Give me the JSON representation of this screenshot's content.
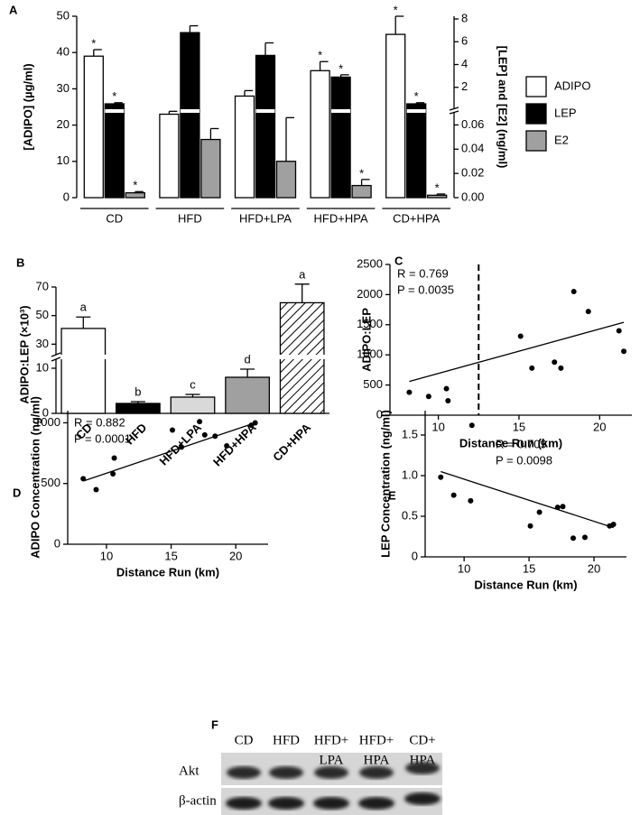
{
  "chart_data": [
    {
      "type": "grouped_bar_broken",
      "panel": "A",
      "categories": [
        "CD",
        "HFD",
        "HFD+LPA",
        "HFD+HPA",
        "CD+HPA"
      ],
      "ylabel": "[ADIPO] (µg/ml)",
      "y2label": "[LEP] and [E2] (ng/ml)",
      "ylim": [
        0,
        50
      ],
      "yticks": [
        0,
        10,
        20,
        30,
        40,
        50
      ],
      "y2lim": [
        0,
        8
      ],
      "y2ticks": [
        2,
        4,
        6,
        8
      ],
      "y3lim": [
        0,
        0.07
      ],
      "y3ticks": [
        {
          "value": 0,
          "label": "0.00"
        },
        0.02,
        0.04,
        0.06
      ],
      "series": [
        {
          "name": "ADIPO",
          "color": "#ffffff",
          "axis": "y",
          "values": [
            39,
            23,
            28,
            35,
            45
          ],
          "errors": [
            1.8,
            0.8,
            1.5,
            2.5,
            5
          ],
          "annotations": [
            "*",
            null,
            null,
            "*",
            "*"
          ]
        },
        {
          "name": "LEP",
          "color": "#000000",
          "axis": "y2",
          "values": [
            0.55,
            6.8,
            4.8,
            2.9,
            0.55
          ],
          "errors": [
            0.1,
            0.6,
            1.1,
            0.2,
            0.1
          ],
          "annotations": [
            "*",
            null,
            null,
            "*",
            "*"
          ]
        },
        {
          "name": "E2",
          "color": "#a0a0a0",
          "axis": "y3",
          "values": [
            0.004,
            0.048,
            0.03,
            0.01,
            0.002
          ],
          "errors": [
            0.001,
            0.009,
            0.036,
            0.005,
            0.001
          ],
          "annotations": [
            "*",
            null,
            null,
            "*",
            "*"
          ]
        }
      ],
      "legend": "right"
    },
    {
      "type": "bar_broken",
      "panel": "B",
      "ylabel": "ADIPO:LEP (×10³)",
      "categories": [
        "CD",
        "HFD",
        "HFD+LPA",
        "HFD+HPA",
        "CD+HPA"
      ],
      "values": [
        41,
        2.2,
        3.6,
        8,
        59
      ],
      "errors": [
        8,
        0.4,
        0.6,
        1.8,
        13
      ],
      "annotations": [
        "a",
        "b",
        "c",
        "d",
        "a"
      ],
      "colors": [
        "#ffffff",
        "#000000",
        "#d9d9d9",
        "#a0a0a0",
        "#ffffff"
      ],
      "hatch": [
        false,
        false,
        false,
        false,
        true
      ],
      "ylim": [
        0,
        70
      ],
      "yticks": [
        0,
        10,
        30,
        50,
        70
      ],
      "y_break": [
        12,
        22
      ]
    },
    {
      "type": "scatter",
      "panel": "C",
      "xlabel": "Distance Run (km)",
      "ylabel": "ADIPO:LEP",
      "x": [
        8.2,
        9.4,
        10.5,
        10.6,
        15.1,
        15.8,
        17.2,
        17.6,
        18.4,
        19.3,
        21.2,
        21.5
      ],
      "y": [
        380,
        310,
        440,
        240,
        1310,
        780,
        880,
        780,
        2050,
        1720,
        1400,
        1060
      ],
      "fit": {
        "x": [
          8.2,
          21.5
        ],
        "y": [
          560,
          1540
        ]
      },
      "vline": 12.5,
      "annotations": [
        "R = 0.769",
        "P = 0.0035"
      ],
      "color": "#000000",
      "xlim": [
        7,
        22
      ],
      "xticks": [
        10,
        15,
        20
      ],
      "ylim": [
        0,
        2500
      ],
      "yticks": [
        0,
        500,
        1000,
        1500,
        2000,
        2500
      ]
    },
    {
      "type": "scatter",
      "panel": "D",
      "xlabel": "Distance Run (km)",
      "ylabel": "ADIPO Concentration (ng/ml)",
      "x": [
        8.2,
        9.2,
        10.5,
        10.6,
        15.1,
        15.8,
        17.2,
        17.6,
        18.4,
        19.3,
        21.2,
        21.5
      ],
      "y": [
        540,
        450,
        580,
        710,
        940,
        800,
        1010,
        900,
        890,
        810,
        980,
        1000
      ],
      "fit": {
        "x": [
          8.2,
          21.5
        ],
        "y": [
          520,
          1000
        ]
      },
      "annotations": [
        "R = 0.882",
        "P = 0.0001"
      ],
      "color": "#000000",
      "xlim": [
        7,
        22.5
      ],
      "xticks": [
        10,
        15,
        20
      ],
      "ylim": [
        0,
        1100
      ],
      "yticks": [
        0,
        500,
        1000
      ]
    },
    {
      "type": "scatter",
      "panel": "E",
      "xlabel": "Distance Run (km)",
      "ylabel": "LEP Concentration (ng/ml)",
      "x": [
        8.2,
        9.2,
        10.5,
        10.6,
        15.1,
        15.8,
        17.2,
        17.6,
        18.4,
        19.3,
        21.2,
        21.5
      ],
      "y": [
        0.98,
        0.76,
        0.69,
        1.62,
        0.38,
        0.55,
        0.61,
        0.62,
        0.23,
        0.24,
        0.38,
        0.4
      ],
      "fit": {
        "x": [
          8.2,
          21.5
        ],
        "y": [
          1.05,
          0.36
        ]
      },
      "annotations": [
        "R = 0.709",
        "P = 0.0098"
      ],
      "color": "#000000",
      "xlim": [
        7,
        22.5
      ],
      "xticks": [
        10,
        15,
        20
      ],
      "ylim": [
        0,
        1.8
      ],
      "yticks": [
        0,
        0.5,
        {
          "value": 1,
          "label": "1.0"
        },
        1.5
      ]
    }
  ],
  "blot": {
    "panel": "F",
    "lanes": [
      [
        "CD"
      ],
      [
        "HFD"
      ],
      [
        "HFD+",
        "LPA"
      ],
      [
        "HFD+",
        "HPA"
      ],
      [
        "CD+",
        "HPA"
      ]
    ],
    "rows": [
      "Akt",
      "β-actin"
    ]
  }
}
